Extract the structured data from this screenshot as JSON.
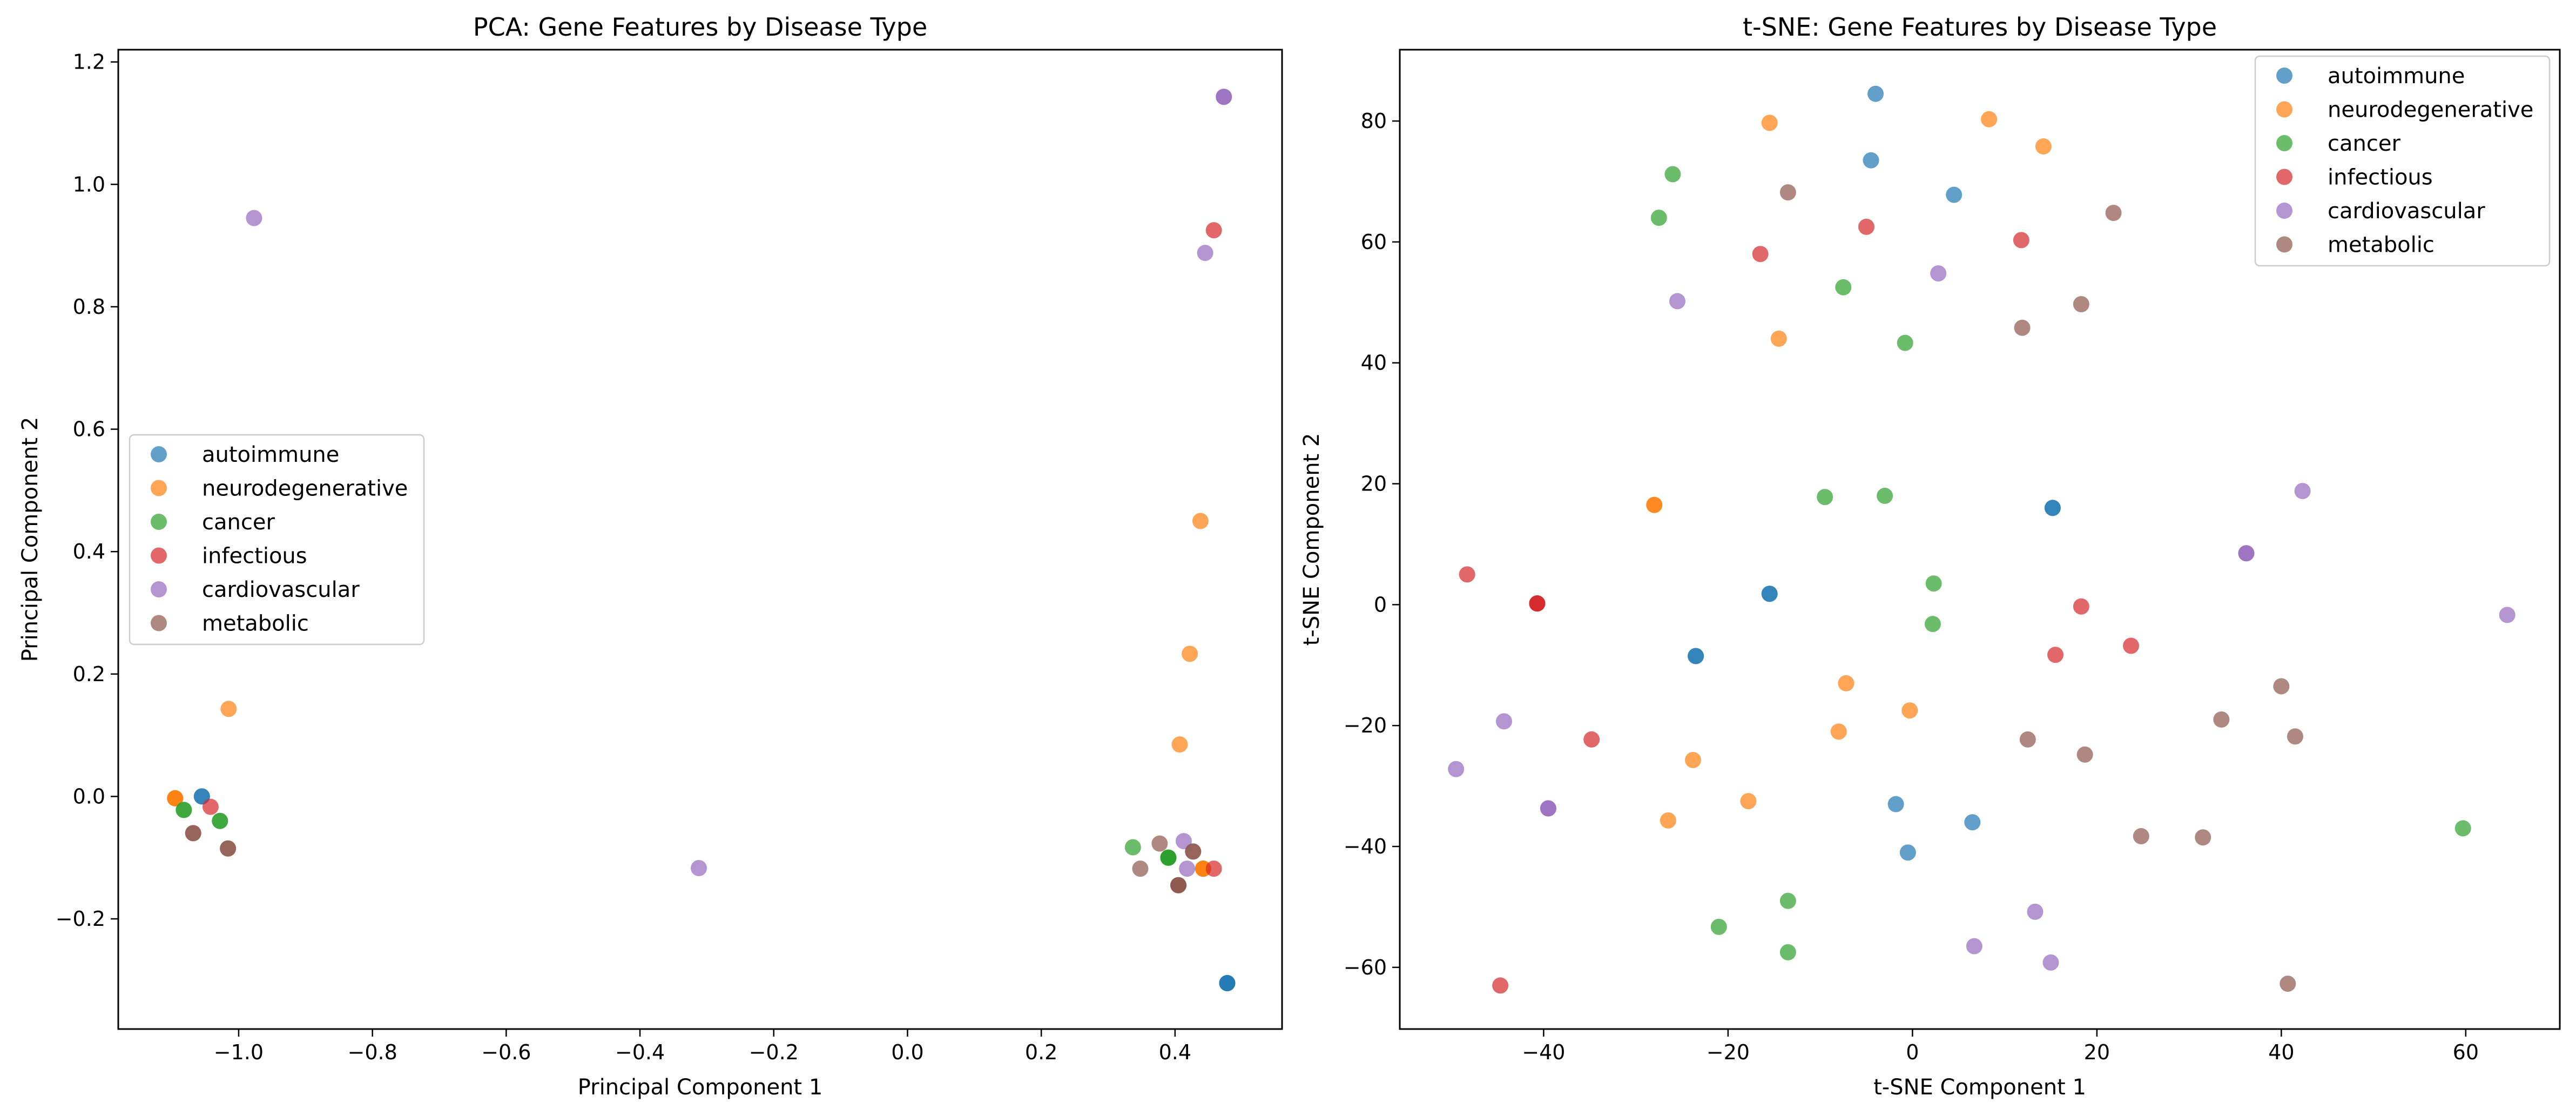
{
  "chart_data": [
    {
      "type": "scatter",
      "title": "PCA: Gene Features by Disease Type",
      "xlabel": "Principal Component 1",
      "ylabel": "Principal Component 2",
      "xlim": [
        -1.18,
        0.56
      ],
      "ylim": [
        -0.38,
        1.22
      ],
      "xticks": [
        -1.0,
        -0.8,
        -0.6,
        -0.4,
        -0.2,
        0.0,
        0.2,
        0.4
      ],
      "xtick_labels": [
        "−1.0",
        "−0.8",
        "−0.6",
        "−0.4",
        "−0.2",
        "0.0",
        "0.2",
        "0.4"
      ],
      "yticks": [
        -0.2,
        0.0,
        0.2,
        0.4,
        0.6,
        0.8,
        1.0,
        1.2
      ],
      "ytick_labels": [
        "−0.2",
        "0.0",
        "0.2",
        "0.4",
        "0.6",
        "0.8",
        "1.0",
        "1.2"
      ],
      "grid": false,
      "legend_position": "center-left",
      "series": [
        {
          "name": "autoimmune",
          "color": "#1f77b4",
          "points": [
            [
              -1.055,
              0.0
            ],
            [
              -1.055,
              0.0
            ],
            [
              0.478,
              -0.305
            ],
            [
              0.478,
              -0.305
            ],
            [
              0.478,
              -0.305
            ]
          ]
        },
        {
          "name": "neurodegenerative",
          "color": "#ff7f0e",
          "points": [
            [
              -1.095,
              -0.003
            ],
            [
              -1.095,
              -0.003
            ],
            [
              -1.095,
              -0.003
            ],
            [
              -1.015,
              0.143
            ],
            [
              0.438,
              0.45
            ],
            [
              0.422,
              0.233
            ],
            [
              0.407,
              0.085
            ],
            [
              0.442,
              -0.118
            ],
            [
              0.442,
              -0.118
            ],
            [
              0.442,
              -0.118
            ]
          ]
        },
        {
          "name": "cancer",
          "color": "#2ca02c",
          "points": [
            [
              -1.082,
              -0.022
            ],
            [
              -1.082,
              -0.022
            ],
            [
              -1.028,
              -0.04
            ],
            [
              -1.028,
              -0.04
            ],
            [
              0.337,
              -0.083
            ],
            [
              0.39,
              -0.1
            ],
            [
              0.39,
              -0.1
            ],
            [
              0.39,
              -0.1
            ],
            [
              0.39,
              -0.1
            ]
          ]
        },
        {
          "name": "infectious",
          "color": "#d62728",
          "points": [
            [
              -1.042,
              -0.017
            ],
            [
              0.458,
              0.925
            ],
            [
              0.458,
              -0.118
            ]
          ]
        },
        {
          "name": "cardiovascular",
          "color": "#9467bd",
          "points": [
            [
              -0.977,
              0.945
            ],
            [
              -0.312,
              -0.117
            ],
            [
              0.445,
              0.888
            ],
            [
              0.473,
              1.143
            ],
            [
              0.473,
              1.143
            ],
            [
              0.413,
              -0.073
            ],
            [
              0.418,
              -0.118
            ]
          ]
        },
        {
          "name": "metabolic",
          "color": "#8c564b",
          "points": [
            [
              -1.068,
              -0.06
            ],
            [
              -1.068,
              -0.06
            ],
            [
              -1.016,
              -0.085
            ],
            [
              -1.016,
              -0.085
            ],
            [
              0.348,
              -0.118
            ],
            [
              0.377,
              -0.077
            ],
            [
              0.427,
              -0.09
            ],
            [
              0.427,
              -0.09
            ],
            [
              0.405,
              -0.145
            ],
            [
              0.405,
              -0.145
            ],
            [
              0.405,
              -0.145
            ]
          ]
        }
      ]
    },
    {
      "type": "scatter",
      "title": "t-SNE: Gene Features by Disease Type",
      "xlabel": "t-SNE Component 1",
      "ylabel": "t-SNE Component 2",
      "xlim": [
        -55.6,
        70.2
      ],
      "ylim": [
        -70.2,
        91.8
      ],
      "xticks": [
        -40,
        -20,
        0,
        20,
        40,
        60
      ],
      "xtick_labels": [
        "−40",
        "−20",
        "0",
        "20",
        "40",
        "60"
      ],
      "yticks": [
        -60,
        -40,
        -20,
        0,
        20,
        40,
        60,
        80
      ],
      "ytick_labels": [
        "−60",
        "−40",
        "−20",
        "0",
        "20",
        "40",
        "60",
        "80"
      ],
      "grid": false,
      "legend_position": "top-right",
      "series": [
        {
          "name": "autoimmune",
          "color": "#1f77b4",
          "points": [
            [
              -4,
              84.5
            ],
            [
              -4.5,
              73.5
            ],
            [
              4.5,
              67.8
            ],
            [
              15.2,
              16
            ],
            [
              15.2,
              16
            ],
            [
              -15.5,
              1.8
            ],
            [
              -15.5,
              1.8
            ],
            [
              -23.5,
              -8.5
            ],
            [
              -23.5,
              -8.5
            ],
            [
              -1.8,
              -33
            ],
            [
              6.5,
              -36
            ],
            [
              -0.5,
              -41
            ]
          ]
        },
        {
          "name": "neurodegenerative",
          "color": "#ff7f0e",
          "points": [
            [
              -15.5,
              79.7
            ],
            [
              8.3,
              80.3
            ],
            [
              14.2,
              75.8
            ],
            [
              -14.5,
              44
            ],
            [
              -28,
              16.5
            ],
            [
              -28,
              16.5
            ],
            [
              -7.2,
              -13
            ],
            [
              -0.3,
              -17.5
            ],
            [
              -8,
              -21
            ],
            [
              -23.8,
              -25.7
            ],
            [
              -17.8,
              -32.5
            ],
            [
              -26.5,
              -35.7
            ]
          ]
        },
        {
          "name": "cancer",
          "color": "#2ca02c",
          "points": [
            [
              -26,
              71.2
            ],
            [
              -27.5,
              64
            ],
            [
              -7.5,
              52.5
            ],
            [
              -0.8,
              43.3
            ],
            [
              -9.5,
              17.8
            ],
            [
              -3,
              18
            ],
            [
              2.3,
              3.5
            ],
            [
              2.2,
              -3.2
            ],
            [
              -13.5,
              -49
            ],
            [
              -21,
              -53.3
            ],
            [
              -13.5,
              -57.5
            ],
            [
              59.7,
              -37
            ]
          ]
        },
        {
          "name": "infectious",
          "color": "#d62728",
          "points": [
            [
              -5,
              62.5
            ],
            [
              -16.5,
              58
            ],
            [
              11.8,
              60.3
            ],
            [
              -48.3,
              5
            ],
            [
              -40.7,
              0.2
            ],
            [
              -40.7,
              0.2
            ],
            [
              -40.7,
              0.2
            ],
            [
              18.3,
              -0.3
            ],
            [
              15.5,
              -8.3
            ],
            [
              23.7,
              -6.8
            ],
            [
              -34.8,
              -22.3
            ],
            [
              -44.7,
              -63
            ]
          ]
        },
        {
          "name": "cardiovascular",
          "color": "#9467bd",
          "points": [
            [
              -25.5,
              50.2
            ],
            [
              2.8,
              54.8
            ],
            [
              42.3,
              18.8
            ],
            [
              36.2,
              8.5
            ],
            [
              36.2,
              8.5
            ],
            [
              64.5,
              -1.7
            ],
            [
              -44.3,
              -19.3
            ],
            [
              -49.5,
              -27.2
            ],
            [
              -39.5,
              -33.7
            ],
            [
              -39.5,
              -33.7
            ],
            [
              13.3,
              -50.8
            ],
            [
              6.7,
              -56.5
            ],
            [
              15,
              -59.2
            ]
          ]
        },
        {
          "name": "metabolic",
          "color": "#8c564b",
          "points": [
            [
              -13.5,
              68.2
            ],
            [
              21.8,
              64.8
            ],
            [
              11.9,
              45.8
            ],
            [
              18.3,
              49.7
            ],
            [
              40,
              -13.5
            ],
            [
              33.5,
              -19
            ],
            [
              41.5,
              -21.8
            ],
            [
              12.5,
              -22.3
            ],
            [
              18.7,
              -24.8
            ],
            [
              24.8,
              -38.3
            ],
            [
              31.5,
              -38.5
            ],
            [
              40.7,
              -62.7
            ]
          ]
        }
      ]
    }
  ]
}
